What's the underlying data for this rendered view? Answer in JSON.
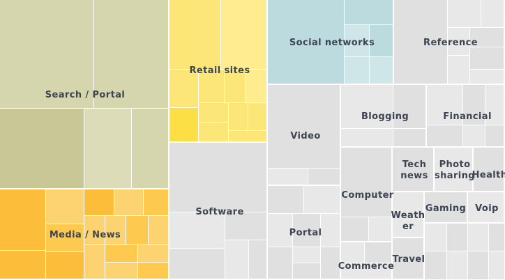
{
  "chart_data": {
    "type": "treemap",
    "colors": {
      "search": "#d6d6ae",
      "search_dark": "#c8c795",
      "search_light": "#dcdcb8",
      "media": "#fdc94f",
      "media_dark": "#fbbd3a",
      "media_light": "#fdd270",
      "retail": "#fde678",
      "retail_dark": "#fbdf45",
      "retail_light": "#feec8e",
      "social": "#bcdbdf",
      "social_light": "#cfe6e8",
      "neutral": "#e0e0e0",
      "neutral_light": "#e8e8e8",
      "neutral_dark": "#d7d7d7",
      "label": "#3d4552"
    },
    "categories": [
      {
        "name": "Search / Portal"
      },
      {
        "name": "Media / News"
      },
      {
        "name": "Retail sites"
      },
      {
        "name": "Software"
      },
      {
        "name": "Social networks"
      },
      {
        "name": "Reference"
      },
      {
        "name": "Video"
      },
      {
        "name": "Blogging"
      },
      {
        "name": "Financial"
      },
      {
        "name": "Computer"
      },
      {
        "name": "Tech\nnews"
      },
      {
        "name": "Photo\nsharing"
      },
      {
        "name": "Health"
      },
      {
        "name": "Weath\ner"
      },
      {
        "name": "Gaming"
      },
      {
        "name": "Voip"
      },
      {
        "name": "Portal"
      },
      {
        "name": "Commerce"
      },
      {
        "name": "Travel"
      }
    ]
  }
}
